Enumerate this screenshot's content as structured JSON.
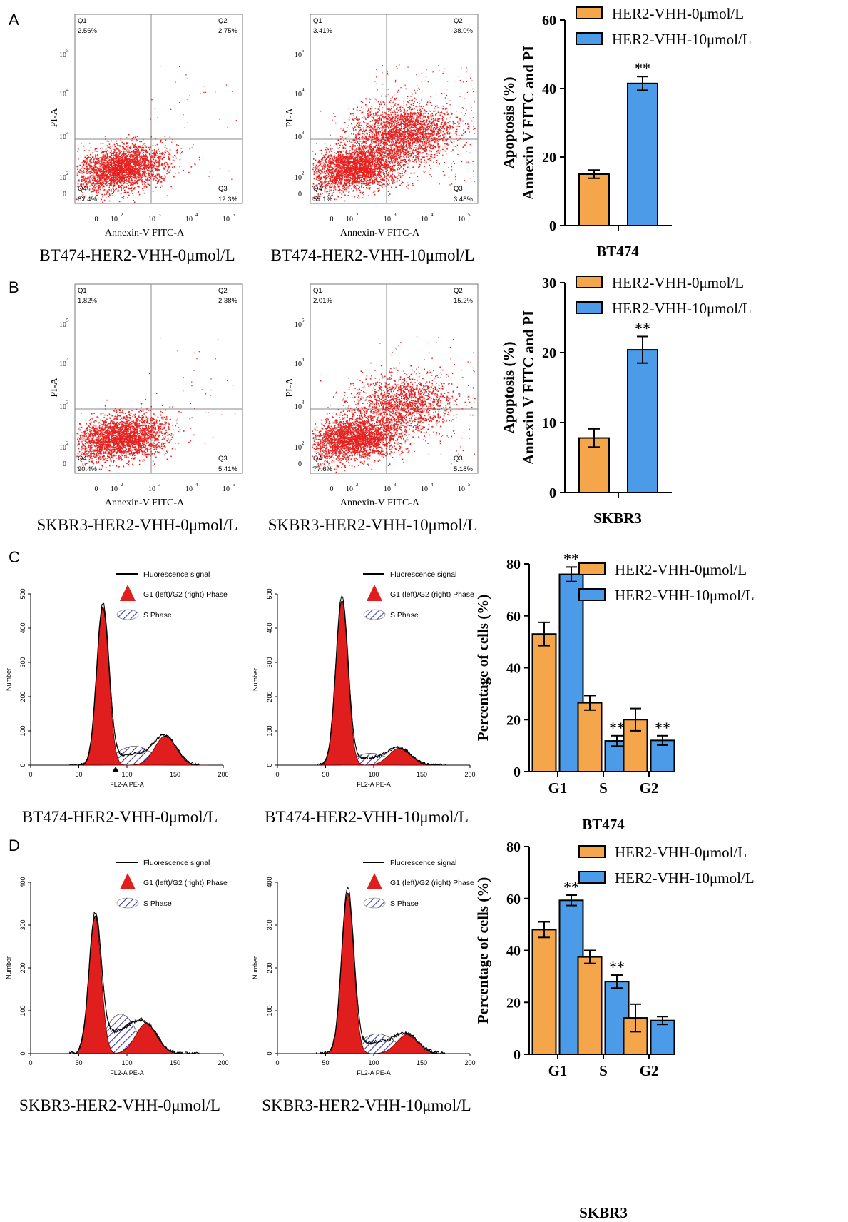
{
  "colors": {
    "orange": "#F5A64A",
    "blue": "#4C9BE8",
    "dot": "#E5211F",
    "fill": "#E01E1E",
    "hatch": "#3B3BA8"
  },
  "panels": [
    {
      "letter": "A",
      "flow_plots": [
        {
          "caption": "BT474-HER2-VHH-0μmol/L",
          "xlabel": "Annexin-V FITC-A",
          "ylabel": "PI-A",
          "quadrants": {
            "Q1": "2.56%",
            "Q2": "2.75%",
            "Q3": "12.3%",
            "Q4": "82.4%"
          },
          "spread": 0.0
        },
        {
          "caption": "BT474-HER2-VHH-10μmol/L",
          "xlabel": "Annexin-V FITC-A",
          "ylabel": "PI-A",
          "quadrants": {
            "Q1": "3.41%",
            "Q2": "38.0%",
            "Q3": "3.48%",
            "Q4": "55.1%"
          },
          "spread": 1.0
        }
      ]
    },
    {
      "letter": "B",
      "flow_plots": [
        {
          "caption": "SKBR3-HER2-VHH-0μmol/L",
          "xlabel": "Annexin-V FITC-A",
          "ylabel": "PI-A",
          "quadrants": {
            "Q1": "1.82%",
            "Q2": "2.38%",
            "Q3": "5.41%",
            "Q4": "90.4%"
          },
          "spread": 0.0
        },
        {
          "caption": "SKBR3-HER2-VHH-10μmol/L",
          "xlabel": "Annexin-V FITC-A",
          "ylabel": "PI-A",
          "quadrants": {
            "Q1": "2.01%",
            "Q2": "15.2%",
            "Q3": "5.18%",
            "Q4": "77.6%"
          },
          "spread": 0.6
        }
      ]
    },
    {
      "letter": "C",
      "histograms": [
        {
          "caption": "BT474-HER2-VHH-0μmol/L",
          "xlabel": "FL2-A PE-A",
          "ylabel": "Number",
          "legend": [
            "Fluorescence signal",
            "G1 (left)/G2 (right) Phase",
            "S Phase"
          ],
          "ymax": 500,
          "g1_center": 75,
          "g1_height": 460,
          "g2_center": 140,
          "g2_height": 85,
          "s_height": 48
        },
        {
          "caption": "BT474-HER2-VHH-10μmol/L",
          "xlabel": "FL2-A PE-A",
          "ylabel": "Number",
          "legend": [
            "Fluorescence signal",
            "G1 (left)/G2 (right) Phase",
            "S Phase"
          ],
          "ymax": 500,
          "g1_center": 67,
          "g1_height": 480,
          "g2_center": 127,
          "g2_height": 50,
          "s_height": 30
        }
      ]
    },
    {
      "letter": "D",
      "histograms": [
        {
          "caption": "SKBR3-HER2-VHH-0μmol/L",
          "xlabel": "FL2-A PE-A",
          "ylabel": "Number",
          "legend": [
            "Fluorescence signal",
            "G1 (left)/G2 (right) Phase",
            "S Phase"
          ],
          "ymax": 400,
          "g1_center": 67,
          "g1_height": 320,
          "g2_center": 120,
          "g2_height": 70,
          "s_height": 80
        },
        {
          "caption": "SKBR3-HER2-VHH-10μmol/L",
          "xlabel": "FL2-A PE-A",
          "ylabel": "Number",
          "legend": [
            "Fluorescence signal",
            "G1 (left)/G2 (right) Phase",
            "S Phase"
          ],
          "ymax": 400,
          "g1_center": 73,
          "g1_height": 375,
          "g2_center": 135,
          "g2_height": 45,
          "s_height": 40
        }
      ]
    }
  ],
  "chart_data": [
    {
      "type": "bar",
      "panel": "A",
      "title": "BT474",
      "ylabel": [
        "Apoptosis (%)",
        "Annexin V FITC and PI"
      ],
      "ylim": [
        0,
        60
      ],
      "yticks": [
        0,
        20,
        40,
        60
      ],
      "categories": [
        ""
      ],
      "series": [
        {
          "name": "HER2-VHH-0μmol/L",
          "values": [
            15
          ],
          "errors": [
            1.2
          ],
          "sig": [
            ""
          ]
        },
        {
          "name": "HER2-VHH-10μmol/L",
          "values": [
            41.5
          ],
          "errors": [
            2
          ],
          "sig": [
            "**"
          ]
        }
      ]
    },
    {
      "type": "bar",
      "panel": "B",
      "title": "SKBR3",
      "ylabel": [
        "Apoptosis (%)",
        "Annexin V FITC and PI"
      ],
      "ylim": [
        0,
        30
      ],
      "yticks": [
        0,
        10,
        20,
        30
      ],
      "categories": [
        ""
      ],
      "series": [
        {
          "name": "HER2-VHH-0μmol/L",
          "values": [
            7.8
          ],
          "errors": [
            1.3
          ],
          "sig": [
            ""
          ]
        },
        {
          "name": "HER2-VHH-10μmol/L",
          "values": [
            20.4
          ],
          "errors": [
            1.9
          ],
          "sig": [
            "**"
          ]
        }
      ]
    },
    {
      "type": "bar",
      "panel": "C",
      "title": "BT474",
      "ylabel": [
        "Percentage of cells (%)"
      ],
      "ylim": [
        0,
        80
      ],
      "yticks": [
        0,
        20,
        40,
        60,
        80
      ],
      "categories": [
        "G1",
        "S",
        "G2"
      ],
      "series": [
        {
          "name": "HER2-VHH-0μmol/L",
          "values": [
            53,
            26.5,
            20
          ],
          "errors": [
            4.5,
            2.8,
            4.3
          ],
          "sig": [
            "",
            "",
            ""
          ]
        },
        {
          "name": "HER2-VHH-10μmol/L",
          "values": [
            76,
            11.8,
            12
          ],
          "errors": [
            2.8,
            2,
            1.8
          ],
          "sig": [
            "**",
            "**",
            "**"
          ]
        }
      ]
    },
    {
      "type": "bar",
      "panel": "D",
      "title": "SKBR3",
      "ylabel": [
        "Percentage of cells (%)"
      ],
      "ylim": [
        0,
        80
      ],
      "yticks": [
        0,
        20,
        40,
        60,
        80
      ],
      "categories": [
        "G1",
        "S",
        "G2"
      ],
      "series": [
        {
          "name": "HER2-VHH-0μmol/L",
          "values": [
            48,
            37.5,
            14
          ],
          "errors": [
            3,
            2.5,
            5.3
          ],
          "sig": [
            "",
            "",
            ""
          ]
        },
        {
          "name": "HER2-VHH-10μmol/L",
          "values": [
            59.3,
            28,
            13
          ],
          "errors": [
            2,
            2.5,
            1.5
          ],
          "sig": [
            "**",
            "**",
            ""
          ]
        }
      ]
    }
  ]
}
